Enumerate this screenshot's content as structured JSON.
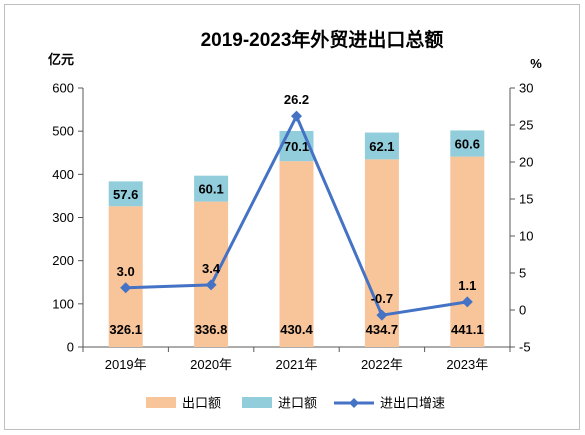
{
  "chart_data": {
    "type": "bar",
    "title": "2019-2023年外贸进出口总额",
    "categories": [
      "2019年",
      "2020年",
      "2021年",
      "2022年",
      "2023年"
    ],
    "left_axis": {
      "unit": "亿元",
      "ylim": [
        0,
        600
      ],
      "ticks": [
        "0",
        "100",
        "200",
        "300",
        "400",
        "500",
        "600"
      ]
    },
    "right_axis": {
      "unit": "%",
      "ylim": [
        -5,
        30
      ],
      "ticks": [
        "-5",
        "0",
        "5",
        "10",
        "15",
        "20",
        "25",
        "30"
      ]
    },
    "series": [
      {
        "name": "出口额",
        "kind": "stacked-bar",
        "axis": "left",
        "color": "#f8c499",
        "values": [
          326.1,
          336.8,
          430.4,
          434.7,
          441.1
        ],
        "labels": [
          "326.1",
          "336.8",
          "430.4",
          "434.7",
          "441.1"
        ]
      },
      {
        "name": "进口额",
        "kind": "stacked-bar",
        "axis": "left",
        "color": "#92cddc",
        "values": [
          57.6,
          60.1,
          70.1,
          62.1,
          60.6
        ],
        "labels": [
          "57.6",
          "60.1",
          "70.1",
          "62.1",
          "60.6"
        ]
      },
      {
        "name": "进出口增速",
        "kind": "line",
        "axis": "right",
        "color": "#4472c4",
        "values": [
          3.0,
          3.4,
          26.2,
          -0.7,
          1.1
        ],
        "labels": [
          "3.0",
          "3.4",
          "26.2",
          "-0.7",
          "1.1"
        ]
      }
    ],
    "grid": false,
    "legend_position": "bottom"
  }
}
